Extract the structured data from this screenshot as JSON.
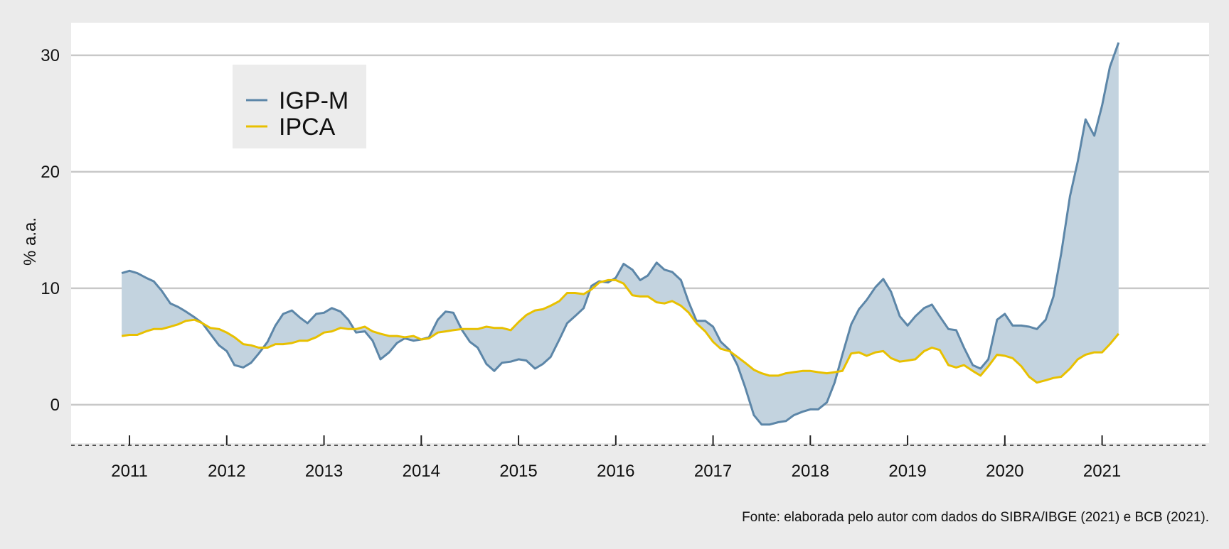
{
  "chart_data": {
    "type": "line",
    "ylabel": "% a.a.",
    "xlabel": "",
    "ylim": [
      -3.3,
      32.8
    ],
    "xlim": [
      2010.4,
      2022.1
    ],
    "yticks": [
      0,
      10,
      20,
      30
    ],
    "xticks": [
      2011,
      2012,
      2013,
      2014,
      2015,
      2016,
      2017,
      2018,
      2019,
      2020,
      2021
    ],
    "grid": "horizontal",
    "legend_placement": "top-left",
    "fill_between_series": true,
    "source_note": "Fonte: elaborada pelo autor com dados do SIBRA/IBGE (2021) e BCB (2021).",
    "colors": {
      "igpm": "#5c86a8",
      "ipca": "#e8c000",
      "fill": "#c3d3df",
      "panel": "#ffffff",
      "grid": "#c8c8c8"
    },
    "series": [
      {
        "name": "IGP-M",
        "points": [
          [
            2010.92,
            11.3
          ],
          [
            2011.0,
            11.5
          ],
          [
            2011.08,
            11.3
          ],
          [
            2011.17,
            10.9
          ],
          [
            2011.25,
            10.6
          ],
          [
            2011.33,
            9.8
          ],
          [
            2011.42,
            8.7
          ],
          [
            2011.5,
            8.4
          ],
          [
            2011.58,
            8.0
          ],
          [
            2011.67,
            7.5
          ],
          [
            2011.75,
            7.0
          ],
          [
            2011.83,
            6.1
          ],
          [
            2011.92,
            5.1
          ],
          [
            2012.0,
            4.6
          ],
          [
            2012.08,
            3.4
          ],
          [
            2012.17,
            3.2
          ],
          [
            2012.25,
            3.6
          ],
          [
            2012.33,
            4.4
          ],
          [
            2012.42,
            5.4
          ],
          [
            2012.5,
            6.8
          ],
          [
            2012.58,
            7.8
          ],
          [
            2012.67,
            8.1
          ],
          [
            2012.75,
            7.5
          ],
          [
            2012.83,
            7.0
          ],
          [
            2012.92,
            7.8
          ],
          [
            2013.0,
            7.9
          ],
          [
            2013.08,
            8.3
          ],
          [
            2013.17,
            8.0
          ],
          [
            2013.25,
            7.3
          ],
          [
            2013.33,
            6.2
          ],
          [
            2013.42,
            6.3
          ],
          [
            2013.5,
            5.5
          ],
          [
            2013.58,
            3.9
          ],
          [
            2013.67,
            4.5
          ],
          [
            2013.75,
            5.3
          ],
          [
            2013.83,
            5.7
          ],
          [
            2013.92,
            5.5
          ],
          [
            2014.0,
            5.6
          ],
          [
            2014.08,
            5.8
          ],
          [
            2014.17,
            7.3
          ],
          [
            2014.25,
            8.0
          ],
          [
            2014.33,
            7.9
          ],
          [
            2014.42,
            6.4
          ],
          [
            2014.5,
            5.4
          ],
          [
            2014.58,
            4.9
          ],
          [
            2014.67,
            3.5
          ],
          [
            2014.75,
            2.9
          ],
          [
            2014.83,
            3.6
          ],
          [
            2014.92,
            3.7
          ],
          [
            2015.0,
            3.9
          ],
          [
            2015.08,
            3.8
          ],
          [
            2015.17,
            3.1
          ],
          [
            2015.25,
            3.5
          ],
          [
            2015.33,
            4.1
          ],
          [
            2015.42,
            5.6
          ],
          [
            2015.5,
            7.0
          ],
          [
            2015.58,
            7.6
          ],
          [
            2015.67,
            8.3
          ],
          [
            2015.75,
            10.2
          ],
          [
            2015.83,
            10.6
          ],
          [
            2015.92,
            10.5
          ],
          [
            2016.0,
            10.9
          ],
          [
            2016.08,
            12.1
          ],
          [
            2016.17,
            11.6
          ],
          [
            2016.25,
            10.7
          ],
          [
            2016.33,
            11.1
          ],
          [
            2016.42,
            12.2
          ],
          [
            2016.5,
            11.6
          ],
          [
            2016.58,
            11.4
          ],
          [
            2016.67,
            10.7
          ],
          [
            2016.75,
            8.8
          ],
          [
            2016.83,
            7.2
          ],
          [
            2016.92,
            7.2
          ],
          [
            2017.0,
            6.7
          ],
          [
            2017.08,
            5.4
          ],
          [
            2017.17,
            4.7
          ],
          [
            2017.25,
            3.4
          ],
          [
            2017.33,
            1.5
          ],
          [
            2017.42,
            -0.9
          ],
          [
            2017.5,
            -1.7
          ],
          [
            2017.58,
            -1.7
          ],
          [
            2017.67,
            -1.5
          ],
          [
            2017.75,
            -1.4
          ],
          [
            2017.83,
            -0.9
          ],
          [
            2017.92,
            -0.6
          ],
          [
            2018.0,
            -0.4
          ],
          [
            2018.08,
            -0.4
          ],
          [
            2018.17,
            0.2
          ],
          [
            2018.25,
            1.9
          ],
          [
            2018.33,
            4.3
          ],
          [
            2018.42,
            6.9
          ],
          [
            2018.5,
            8.2
          ],
          [
            2018.58,
            9.0
          ],
          [
            2018.67,
            10.1
          ],
          [
            2018.75,
            10.8
          ],
          [
            2018.83,
            9.7
          ],
          [
            2018.92,
            7.6
          ],
          [
            2019.0,
            6.8
          ],
          [
            2019.08,
            7.6
          ],
          [
            2019.17,
            8.3
          ],
          [
            2019.25,
            8.6
          ],
          [
            2019.33,
            7.6
          ],
          [
            2019.42,
            6.5
          ],
          [
            2019.5,
            6.4
          ],
          [
            2019.58,
            4.9
          ],
          [
            2019.67,
            3.4
          ],
          [
            2019.75,
            3.1
          ],
          [
            2019.83,
            3.9
          ],
          [
            2019.92,
            7.3
          ],
          [
            2020.0,
            7.8
          ],
          [
            2020.08,
            6.8
          ],
          [
            2020.17,
            6.8
          ],
          [
            2020.25,
            6.7
          ],
          [
            2020.33,
            6.5
          ],
          [
            2020.42,
            7.3
          ],
          [
            2020.5,
            9.3
          ],
          [
            2020.58,
            13.0
          ],
          [
            2020.67,
            17.9
          ],
          [
            2020.75,
            20.9
          ],
          [
            2020.83,
            24.5
          ],
          [
            2020.92,
            23.1
          ],
          [
            2021.0,
            25.7
          ],
          [
            2021.08,
            29.0
          ],
          [
            2021.17,
            31.1
          ]
        ]
      },
      {
        "name": "IPCA",
        "points": [
          [
            2010.92,
            5.9
          ],
          [
            2011.0,
            6.0
          ],
          [
            2011.08,
            6.0
          ],
          [
            2011.17,
            6.3
          ],
          [
            2011.25,
            6.5
          ],
          [
            2011.33,
            6.5
          ],
          [
            2011.42,
            6.7
          ],
          [
            2011.5,
            6.9
          ],
          [
            2011.58,
            7.2
          ],
          [
            2011.67,
            7.3
          ],
          [
            2011.75,
            7.0
          ],
          [
            2011.83,
            6.6
          ],
          [
            2011.92,
            6.5
          ],
          [
            2012.0,
            6.2
          ],
          [
            2012.08,
            5.8
          ],
          [
            2012.17,
            5.2
          ],
          [
            2012.25,
            5.1
          ],
          [
            2012.33,
            4.9
          ],
          [
            2012.42,
            4.9
          ],
          [
            2012.5,
            5.2
          ],
          [
            2012.58,
            5.2
          ],
          [
            2012.67,
            5.3
          ],
          [
            2012.75,
            5.5
          ],
          [
            2012.83,
            5.5
          ],
          [
            2012.92,
            5.8
          ],
          [
            2013.0,
            6.2
          ],
          [
            2013.08,
            6.3
          ],
          [
            2013.17,
            6.6
          ],
          [
            2013.25,
            6.5
          ],
          [
            2013.33,
            6.5
          ],
          [
            2013.42,
            6.7
          ],
          [
            2013.5,
            6.3
          ],
          [
            2013.58,
            6.1
          ],
          [
            2013.67,
            5.9
          ],
          [
            2013.75,
            5.9
          ],
          [
            2013.83,
            5.8
          ],
          [
            2013.92,
            5.9
          ],
          [
            2014.0,
            5.6
          ],
          [
            2014.08,
            5.7
          ],
          [
            2014.17,
            6.2
          ],
          [
            2014.25,
            6.3
          ],
          [
            2014.33,
            6.4
          ],
          [
            2014.42,
            6.5
          ],
          [
            2014.5,
            6.5
          ],
          [
            2014.58,
            6.5
          ],
          [
            2014.67,
            6.7
          ],
          [
            2014.75,
            6.6
          ],
          [
            2014.83,
            6.6
          ],
          [
            2014.92,
            6.4
          ],
          [
            2015.0,
            7.1
          ],
          [
            2015.08,
            7.7
          ],
          [
            2015.17,
            8.1
          ],
          [
            2015.25,
            8.2
          ],
          [
            2015.33,
            8.5
          ],
          [
            2015.42,
            8.9
          ],
          [
            2015.5,
            9.6
          ],
          [
            2015.58,
            9.6
          ],
          [
            2015.67,
            9.5
          ],
          [
            2015.75,
            9.9
          ],
          [
            2015.83,
            10.5
          ],
          [
            2015.92,
            10.7
          ],
          [
            2016.0,
            10.7
          ],
          [
            2016.08,
            10.4
          ],
          [
            2016.17,
            9.4
          ],
          [
            2016.25,
            9.3
          ],
          [
            2016.33,
            9.3
          ],
          [
            2016.42,
            8.8
          ],
          [
            2016.5,
            8.7
          ],
          [
            2016.58,
            8.9
          ],
          [
            2016.67,
            8.5
          ],
          [
            2016.75,
            7.9
          ],
          [
            2016.83,
            7.0
          ],
          [
            2016.92,
            6.3
          ],
          [
            2017.0,
            5.4
          ],
          [
            2017.08,
            4.8
          ],
          [
            2017.17,
            4.6
          ],
          [
            2017.25,
            4.1
          ],
          [
            2017.33,
            3.6
          ],
          [
            2017.42,
            3.0
          ],
          [
            2017.5,
            2.7
          ],
          [
            2017.58,
            2.5
          ],
          [
            2017.67,
            2.5
          ],
          [
            2017.75,
            2.7
          ],
          [
            2017.83,
            2.8
          ],
          [
            2017.92,
            2.9
          ],
          [
            2018.0,
            2.9
          ],
          [
            2018.08,
            2.8
          ],
          [
            2018.17,
            2.7
          ],
          [
            2018.25,
            2.8
          ],
          [
            2018.33,
            2.9
          ],
          [
            2018.42,
            4.4
          ],
          [
            2018.5,
            4.5
          ],
          [
            2018.58,
            4.2
          ],
          [
            2018.67,
            4.5
          ],
          [
            2018.75,
            4.6
          ],
          [
            2018.83,
            4.0
          ],
          [
            2018.92,
            3.7
          ],
          [
            2019.0,
            3.8
          ],
          [
            2019.08,
            3.9
          ],
          [
            2019.17,
            4.6
          ],
          [
            2019.25,
            4.9
          ],
          [
            2019.33,
            4.7
          ],
          [
            2019.42,
            3.4
          ],
          [
            2019.5,
            3.2
          ],
          [
            2019.58,
            3.4
          ],
          [
            2019.67,
            2.9
          ],
          [
            2019.75,
            2.5
          ],
          [
            2019.83,
            3.3
          ],
          [
            2019.92,
            4.3
          ],
          [
            2020.0,
            4.2
          ],
          [
            2020.08,
            4.0
          ],
          [
            2020.17,
            3.3
          ],
          [
            2020.25,
            2.4
          ],
          [
            2020.33,
            1.9
          ],
          [
            2020.42,
            2.1
          ],
          [
            2020.5,
            2.3
          ],
          [
            2020.58,
            2.4
          ],
          [
            2020.67,
            3.1
          ],
          [
            2020.75,
            3.9
          ],
          [
            2020.83,
            4.3
          ],
          [
            2020.92,
            4.5
          ],
          [
            2021.0,
            4.5
          ],
          [
            2021.08,
            5.2
          ],
          [
            2021.17,
            6.1
          ]
        ]
      }
    ]
  }
}
